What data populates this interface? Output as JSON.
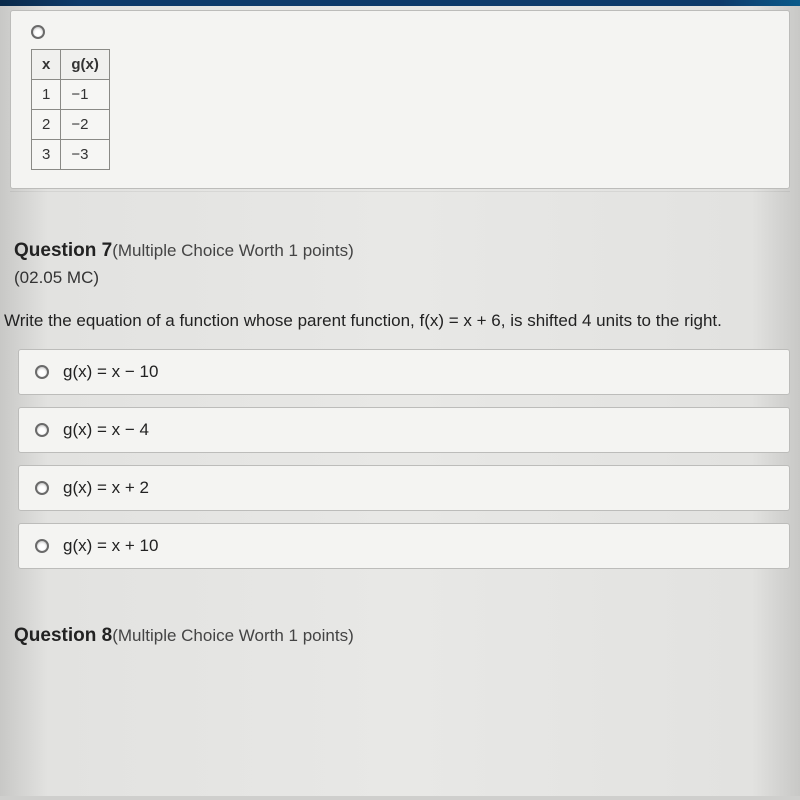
{
  "top_answer": {
    "table": {
      "columns": [
        "x",
        "g(x)"
      ],
      "rows": [
        [
          "1",
          "−1"
        ],
        [
          "2",
          "−2"
        ],
        [
          "3",
          "−3"
        ]
      ],
      "border_color": "#8a8a86",
      "cell_bg": "#f6f6f4",
      "header_bg": "#f0f0ee",
      "font_size": 15
    }
  },
  "q7": {
    "number_label": "Question 7",
    "meta_label": "(Multiple Choice Worth 1 points)",
    "code": "(02.05 MC)",
    "prompt": "Write the equation of a function whose parent function, f(x) = x + 6, is shifted 4 units to the right.",
    "choices": [
      {
        "label": "g(x) = x − 10"
      },
      {
        "label": "g(x) = x − 4"
      },
      {
        "label": "g(x) = x + 2"
      },
      {
        "label": "g(x) = x + 10"
      }
    ],
    "colors": {
      "panel_bg": "#f4f4f2",
      "panel_border": "#bcbcba",
      "page_bg": "#e8e8e6",
      "text": "#222222",
      "top_strip": "#0d3a6a"
    }
  },
  "q8": {
    "number_label": "Question 8",
    "meta_label": "(Multiple Choice Worth 1 points)"
  }
}
